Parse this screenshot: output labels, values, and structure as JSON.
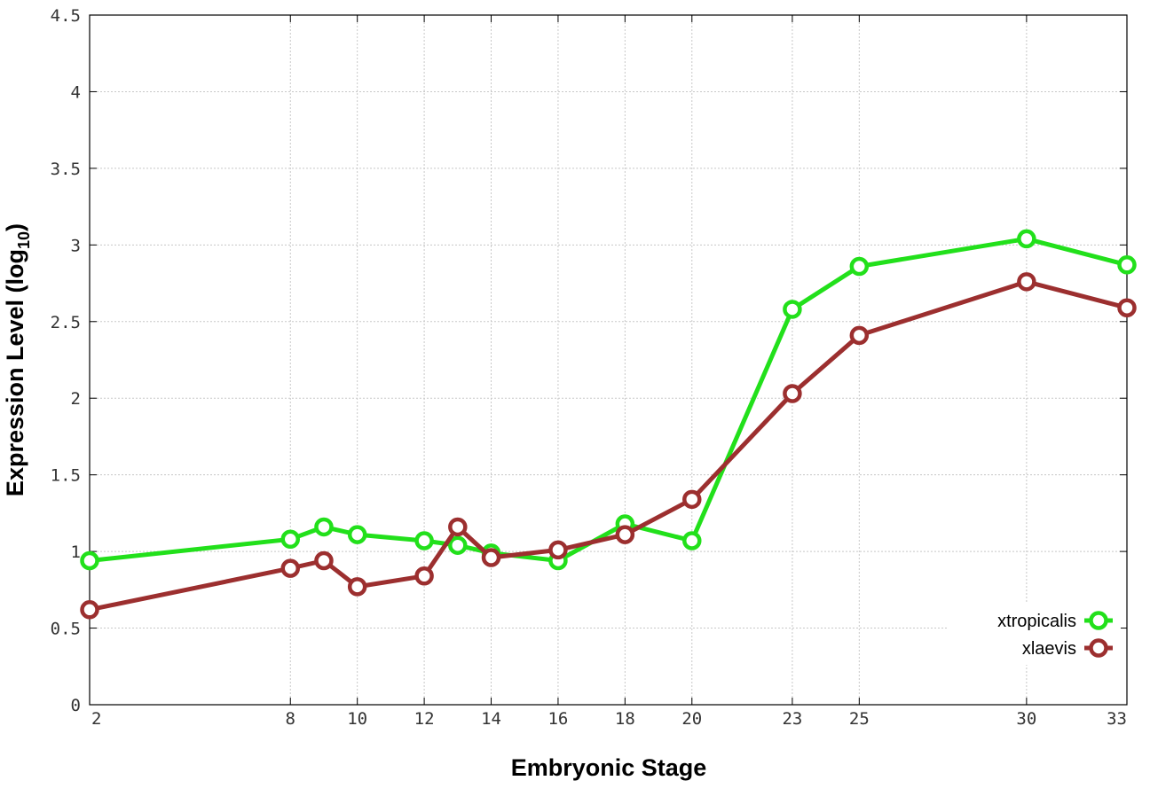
{
  "chart_data": {
    "type": "line",
    "title": "",
    "xlabel": "Embryonic Stage",
    "ylabel_main": "Expression Level (log",
    "ylabel_sub": "10",
    "ylabel_close": ")",
    "x_categories": [
      "2",
      "8",
      "9",
      "10",
      "12",
      "13",
      "14",
      "16",
      "18",
      "20",
      "23",
      "25",
      "30",
      "33"
    ],
    "x_tick_labels": [
      "2",
      "8",
      "10",
      "12",
      "14",
      "16",
      "18",
      "20",
      "23",
      "25",
      "30",
      "33"
    ],
    "ylim": [
      0,
      4.5
    ],
    "y_tick_labels": [
      "0",
      "0.5",
      "1",
      "1.5",
      "2",
      "2.5",
      "3",
      "3.5",
      "4",
      "4.5"
    ],
    "grid": true,
    "legend_position": "bottom-right",
    "series": [
      {
        "name": "xtropicalis",
        "color": "#22e01b",
        "x": [
          2,
          8,
          9,
          10,
          12,
          13,
          14,
          16,
          18,
          20,
          23,
          25,
          30,
          33
        ],
        "values": [
          0.94,
          1.08,
          1.16,
          1.11,
          1.07,
          1.04,
          0.99,
          0.94,
          1.18,
          1.07,
          2.58,
          2.86,
          3.04,
          2.87
        ]
      },
      {
        "name": "xlaevis",
        "color": "#9c2f2f",
        "x": [
          2,
          8,
          9,
          10,
          12,
          13,
          14,
          16,
          18,
          20,
          23,
          25,
          30,
          33
        ],
        "values": [
          0.62,
          0.89,
          0.94,
          0.77,
          0.84,
          1.16,
          0.96,
          1.01,
          1.11,
          1.34,
          2.03,
          2.41,
          2.76,
          2.59
        ]
      }
    ]
  }
}
